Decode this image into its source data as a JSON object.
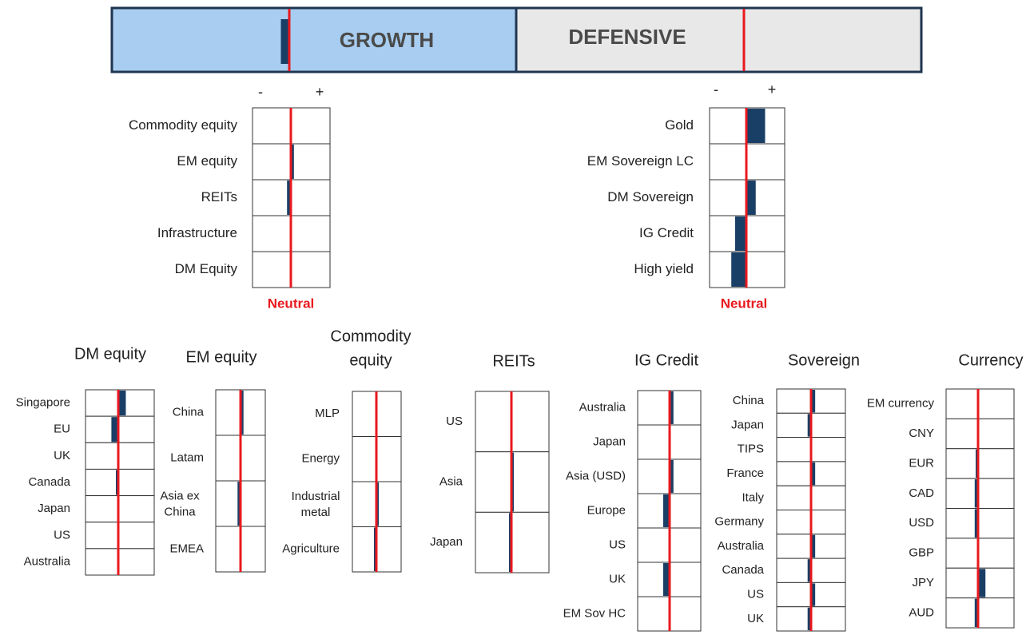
{
  "colors": {
    "growth_bg": "#a8cdf0",
    "defensive_bg": "#e8e8e8",
    "border": "#1f3550",
    "bar": "#1a3f66",
    "neutral": "#e8191e",
    "text": "#222222"
  },
  "header": {
    "growth_label": "GROWTH",
    "defensive_label": "DEFENSIVE",
    "growth_tilt": -0.15,
    "defensive_tilt": 0
  },
  "chart_data": [
    {
      "type": "bar",
      "title": "",
      "group": "Growth",
      "minus_label": "-",
      "plus_label": "+",
      "neutral_label": "Neutral",
      "categories": [
        "Commodity equity",
        "EM equity",
        "REITs",
        "Infrastructure",
        "DM Equity"
      ],
      "values": [
        0,
        0.08,
        -0.1,
        0,
        0
      ],
      "ylim": [
        -1,
        1
      ]
    },
    {
      "type": "bar",
      "title": "",
      "group": "Defensive",
      "minus_label": "-",
      "plus_label": "+",
      "neutral_label": "Neutral",
      "categories": [
        "Gold",
        "EM Sovereign LC",
        "DM Sovereign",
        "IG Credit",
        "High yield"
      ],
      "values": [
        0.5,
        0,
        0.25,
        -0.3,
        -0.4
      ],
      "ylim": [
        -1,
        1
      ]
    },
    {
      "type": "bar",
      "title": "DM equity",
      "categories": [
        "Singapore",
        "EU",
        "UK",
        "Canada",
        "Japan",
        "US",
        "Australia"
      ],
      "values": [
        0.22,
        -0.2,
        0,
        -0.05,
        0,
        0,
        0
      ],
      "ylim": [
        -1,
        1
      ]
    },
    {
      "type": "bar",
      "title": "EM equity",
      "categories": [
        "China",
        "Latam",
        "Asia ex China",
        "EMEA"
      ],
      "values": [
        0.12,
        0,
        -0.12,
        0
      ],
      "ylim": [
        -1,
        1
      ]
    },
    {
      "type": "bar",
      "title": "Commodity equity",
      "categories": [
        "MLP",
        "Energy",
        "Industrial metal",
        "Agriculture"
      ],
      "values": [
        0,
        0,
        0.1,
        -0.1
      ],
      "ylim": [
        -1,
        1
      ]
    },
    {
      "type": "bar",
      "title": "REITs",
      "categories": [
        "US",
        "Asia",
        "Japan"
      ],
      "values": [
        0,
        0.03,
        -0.03
      ],
      "ylim": [
        -1,
        1
      ]
    },
    {
      "type": "bar",
      "title": "IG Credit",
      "categories": [
        "Australia",
        "Japan",
        "Asia (USD)",
        "Europe",
        "US",
        "UK",
        "EM Sov HC"
      ],
      "values": [
        0.12,
        0,
        0.12,
        -0.2,
        0,
        -0.2,
        0
      ],
      "ylim": [
        -1,
        1
      ]
    },
    {
      "type": "bar",
      "title": "Sovereign",
      "categories": [
        "China",
        "Japan",
        "TIPS",
        "France",
        "Italy",
        "Germany",
        "Australia",
        "Canada",
        "US",
        "UK"
      ],
      "values": [
        0.12,
        -0.1,
        0,
        0.12,
        0,
        0,
        0.12,
        -0.1,
        0.12,
        -0.1
      ],
      "ylim": [
        -1,
        1
      ]
    },
    {
      "type": "bar",
      "title": "Currency",
      "categories": [
        "EM currency",
        "CNY",
        "EUR",
        "CAD",
        "USD",
        "GBP",
        "JPY",
        "AUD"
      ],
      "values": [
        0,
        0,
        -0.05,
        -0.1,
        -0.1,
        0,
        0.22,
        -0.1
      ],
      "ylim": [
        -1,
        1
      ]
    }
  ]
}
